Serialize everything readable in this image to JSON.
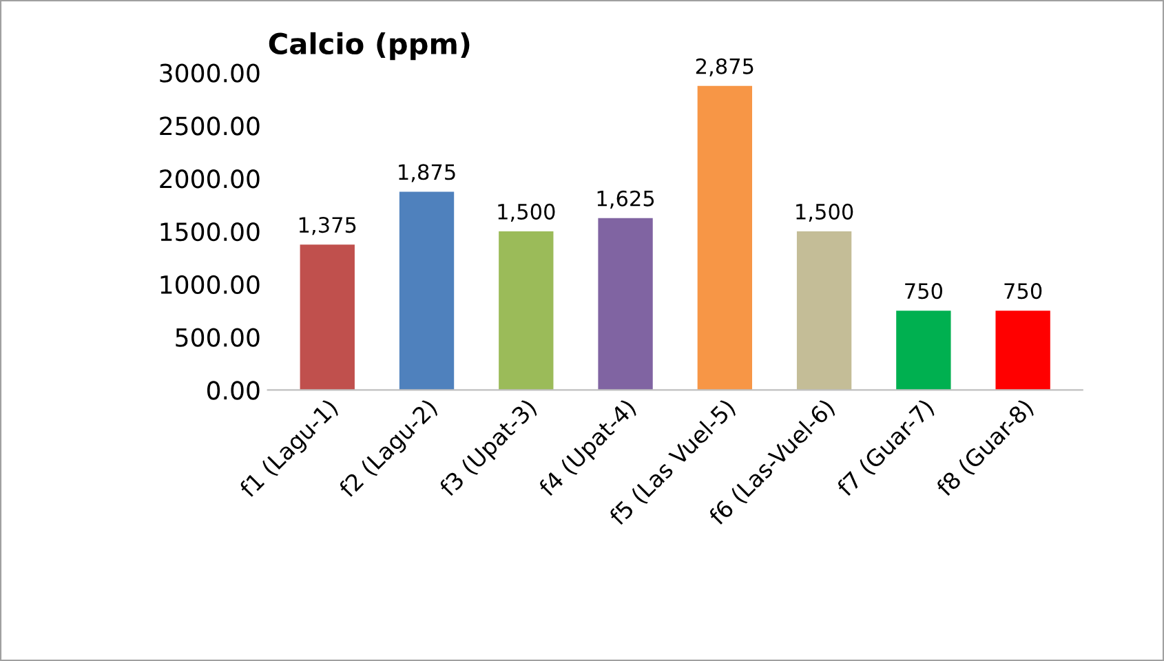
{
  "chart_data": {
    "type": "bar",
    "title": "Calcio (ppm)",
    "categories": [
      "f1 (Lagu-1)",
      "f2 (Lagu-2)",
      "f3 (Upat-3)",
      "f4 (Upat-4)",
      "f5 (Las Vuel-5)",
      "f6 (Las-Vuel-6)",
      "f7 (Guar-7)",
      "f8 (Guar-8)"
    ],
    "values": [
      1375,
      1875,
      1500,
      1625,
      2875,
      1500,
      750,
      750
    ],
    "colors": [
      "#c0504d",
      "#4f81bd",
      "#9bbb59",
      "#8064a2",
      "#f79646",
      "#c4bd97",
      "#00b050",
      "#ff0000"
    ],
    "value_labels": [
      "1,375",
      "1,875",
      "1,500",
      "1,625",
      "2,875",
      "1,500",
      "750",
      "750"
    ],
    "ylim": [
      0,
      3000
    ],
    "yticks": [
      {
        "value": 0,
        "label": "0.00"
      },
      {
        "value": 500,
        "label": "500.00"
      },
      {
        "value": 1000,
        "label": "1000.00"
      },
      {
        "value": 1500,
        "label": "1500.00"
      },
      {
        "value": 2000,
        "label": "2000.00"
      },
      {
        "value": 2500,
        "label": "2500.00"
      },
      {
        "value": 3000,
        "label": "3000.00"
      }
    ],
    "grid": false,
    "legend": false
  }
}
